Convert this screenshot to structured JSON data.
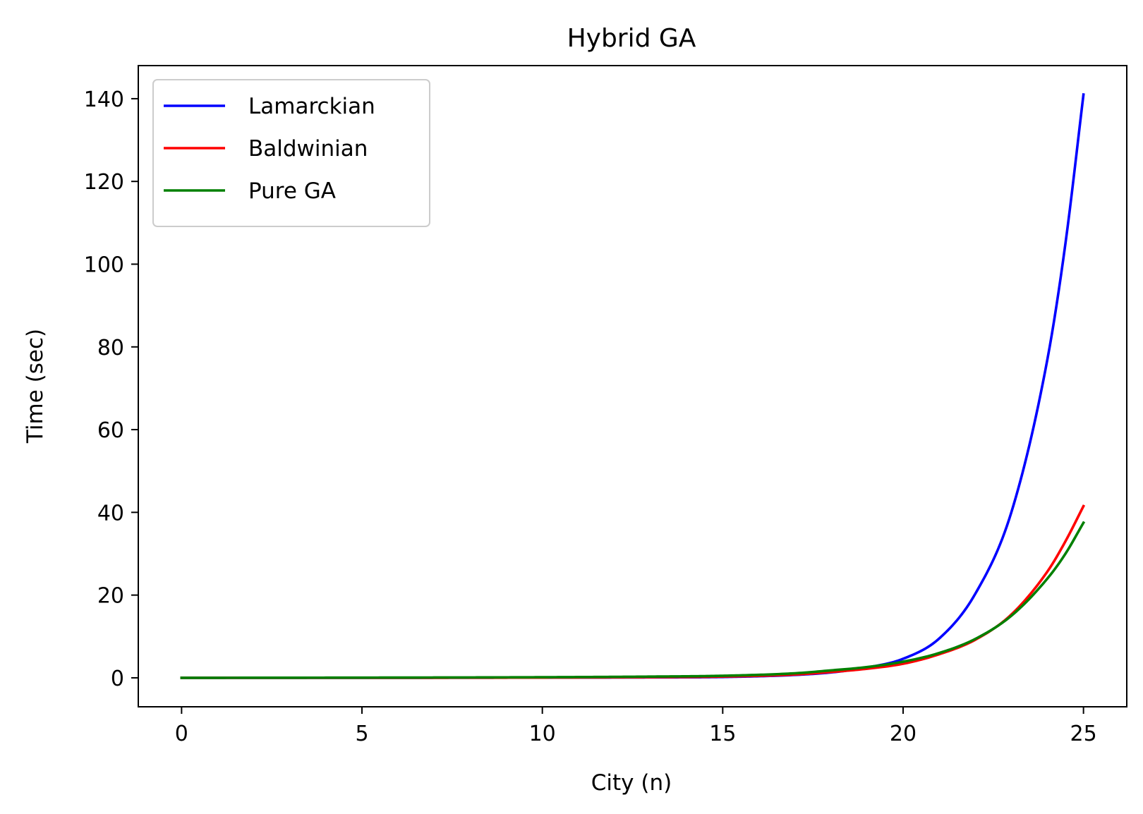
{
  "chart_data": {
    "type": "line",
    "title": "Hybrid GA",
    "xlabel": "City (n)",
    "ylabel": "Time (sec)",
    "xlim": [
      -1.2,
      26.2
    ],
    "ylim": [
      -7,
      148
    ],
    "xticks": [
      0,
      5,
      10,
      15,
      20,
      25
    ],
    "yticks": [
      0,
      20,
      40,
      60,
      80,
      100,
      120,
      140
    ],
    "grid": false,
    "legend_position": "top-left",
    "series": [
      {
        "name": "Lamarckian",
        "color": "#0000ff",
        "x": [
          0,
          5,
          10,
          13,
          15,
          17,
          18,
          19,
          20,
          21,
          22,
          23,
          24,
          24.5,
          25
        ],
        "y": [
          0,
          0,
          0.05,
          0.1,
          0.2,
          0.7,
          1.3,
          2.5,
          4.6,
          9.5,
          20.3,
          40,
          77,
          105,
          141
        ]
      },
      {
        "name": "Baldwinian",
        "color": "#ff0000",
        "x": [
          0,
          5,
          10,
          13,
          15,
          17,
          18,
          19,
          20,
          21,
          22,
          23,
          24,
          24.5,
          25
        ],
        "y": [
          0,
          0,
          0.05,
          0.15,
          0.3,
          0.8,
          1.4,
          2.2,
          3.4,
          5.7,
          9.2,
          15.3,
          25.7,
          33,
          41.5
        ]
      },
      {
        "name": "Pure GA",
        "color": "#008000",
        "x": [
          0,
          5,
          10,
          13,
          15,
          17,
          18,
          19,
          20,
          21,
          22,
          23,
          24,
          24.5,
          25
        ],
        "y": [
          0,
          0.05,
          0.15,
          0.3,
          0.5,
          1.1,
          1.8,
          2.6,
          3.9,
          6,
          9.4,
          15,
          24,
          30,
          37.5
        ]
      }
    ]
  }
}
